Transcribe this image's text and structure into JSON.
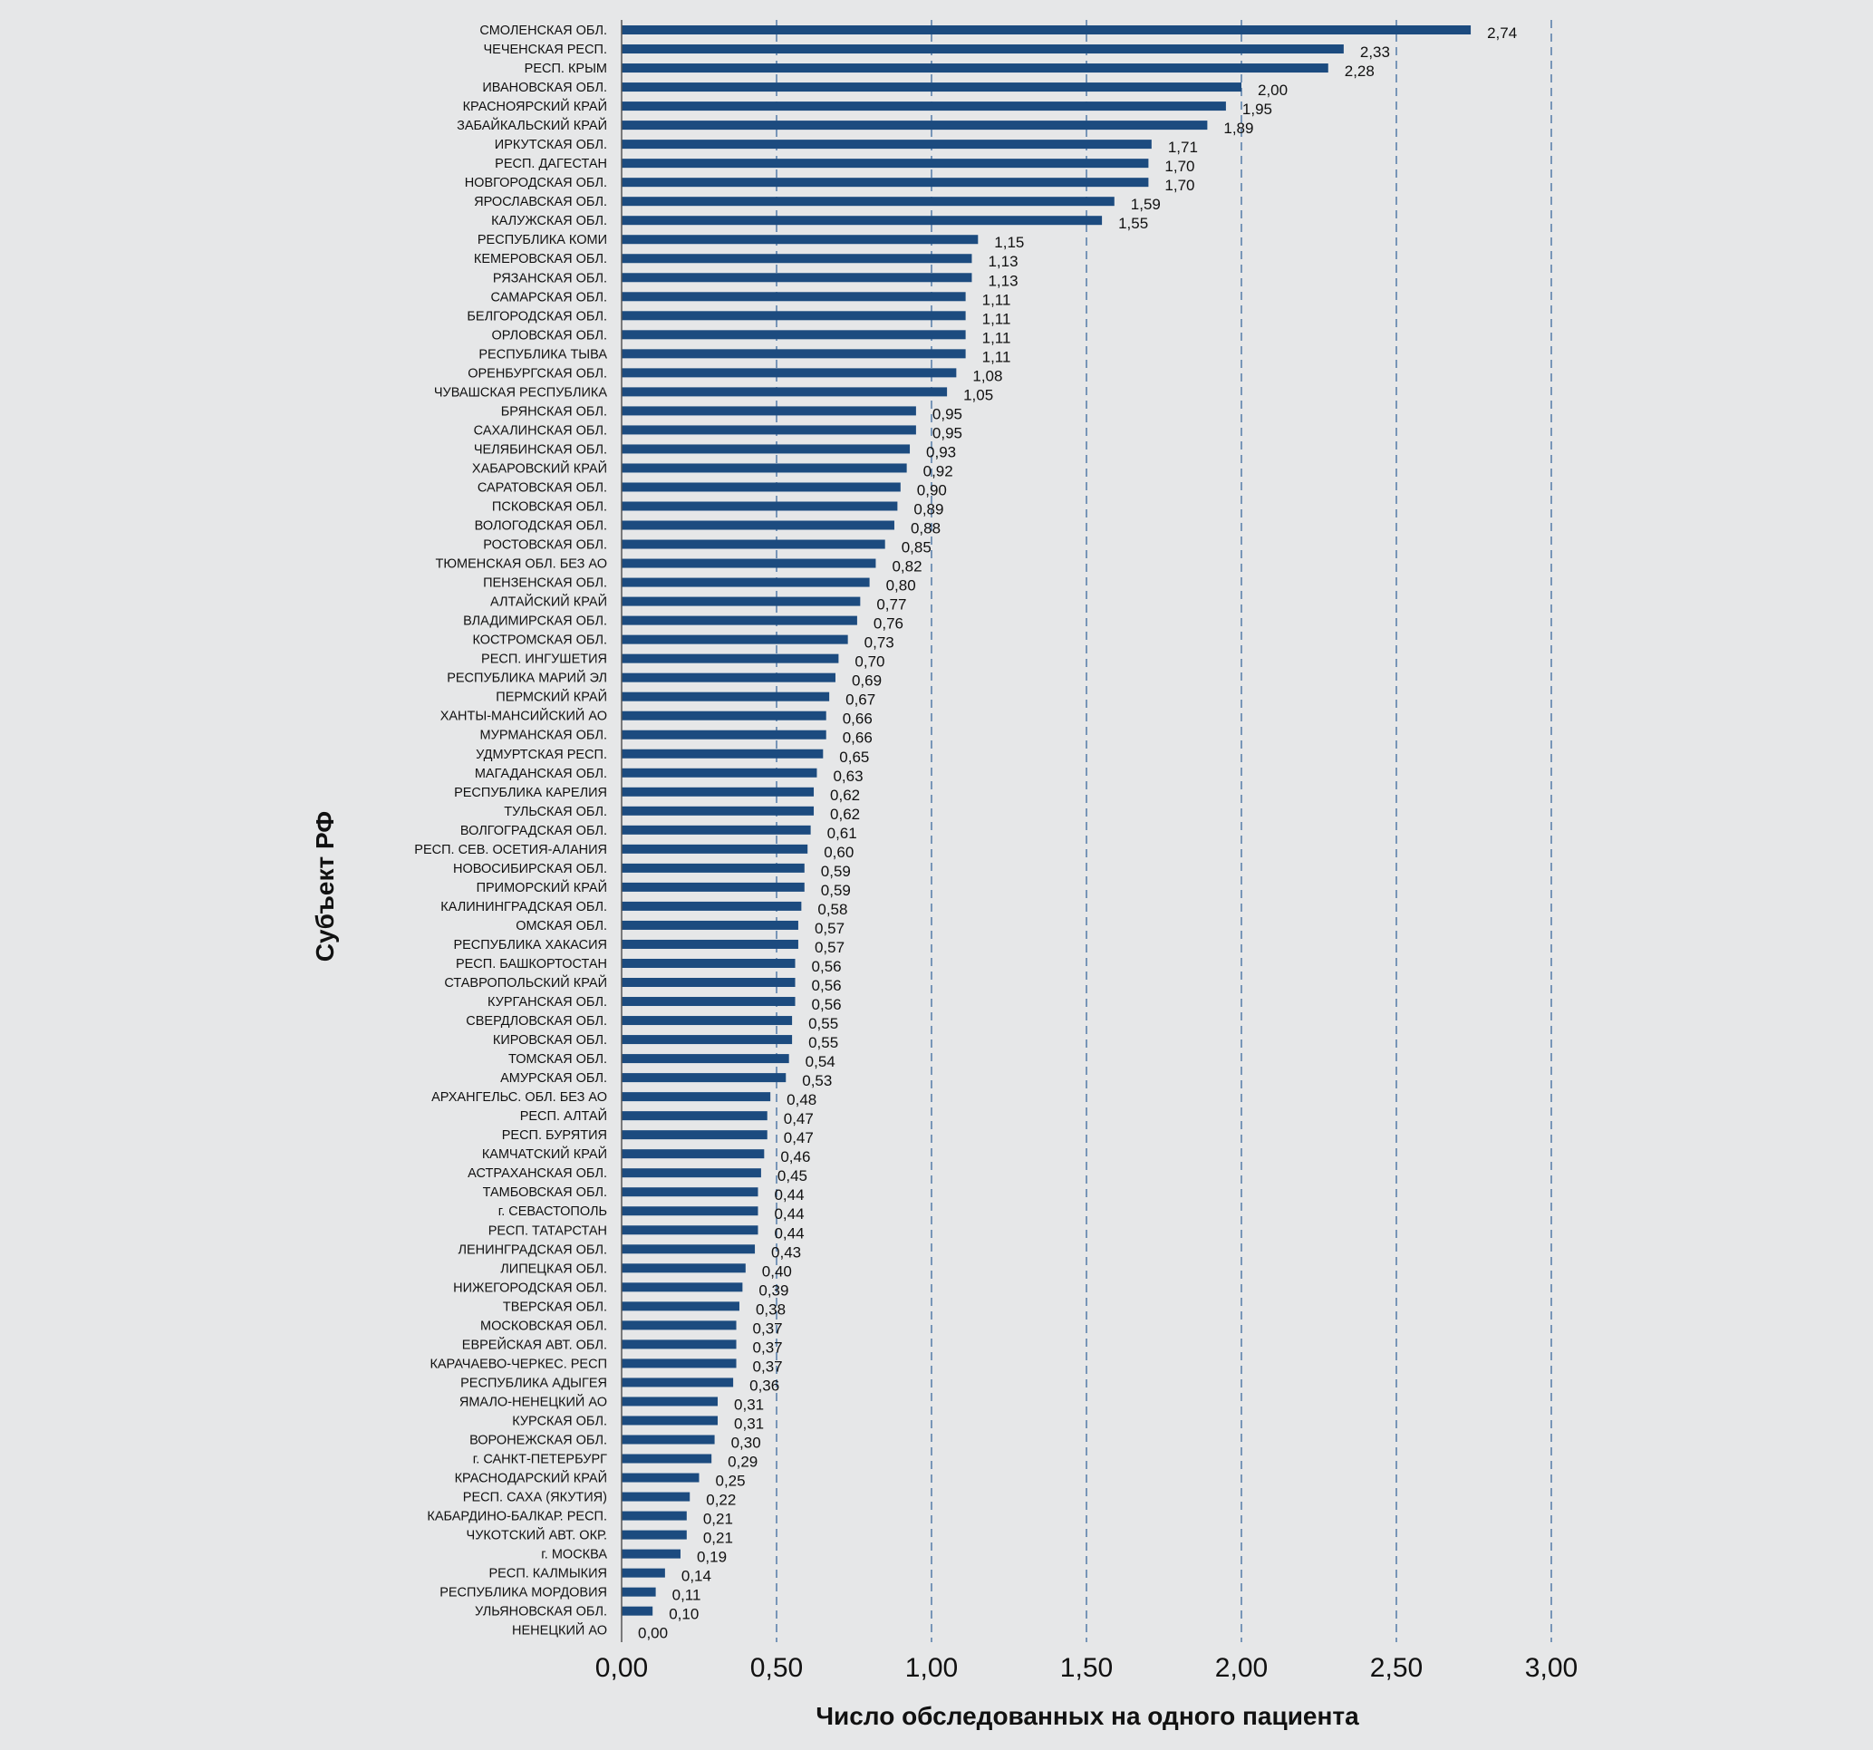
{
  "chart_data": {
    "type": "bar",
    "orientation": "horizontal",
    "title": "",
    "xlabel": "Число обследованных на одного пациента",
    "ylabel": "Субъект РФ",
    "xlim": [
      0,
      3
    ],
    "x_ticks": [
      "0,00",
      "0,50",
      "1,00",
      "1,50",
      "2,00",
      "2,50",
      "3,00"
    ],
    "x_tick_values": [
      0,
      0.5,
      1,
      1.5,
      2,
      2.5,
      3
    ],
    "grid": "vertical dashed",
    "bar_color": "#1c4b7f",
    "grid_color": "#3d6a9e",
    "categories": [
      "СМОЛЕНСКАЯ ОБЛ.",
      "ЧЕЧЕНСКАЯ РЕСП.",
      "РЕСП. КРЫМ",
      "ИВАНОВСКАЯ ОБЛ.",
      "КРАСНОЯРСКИЙ КРАЙ",
      "ЗАБАЙКАЛЬСКИЙ КРАЙ",
      "ИРКУТСКАЯ ОБЛ.",
      "РЕСП. ДАГЕСТАН",
      "НОВГОРОДСКАЯ ОБЛ.",
      "ЯРОСЛАВСКАЯ ОБЛ.",
      "КАЛУЖСКАЯ ОБЛ.",
      "РЕСПУБЛИКА КОМИ",
      "КЕМЕРОВСКАЯ ОБЛ.",
      "РЯЗАНСКАЯ ОБЛ.",
      "САМАРСКАЯ ОБЛ.",
      "БЕЛГОРОДСКАЯ ОБЛ.",
      "ОРЛОВСКАЯ ОБЛ.",
      "РЕСПУБЛИКА ТЫВА",
      "ОРЕНБУРГСКАЯ ОБЛ.",
      "ЧУВАШСКАЯ РЕСПУБЛИКА",
      "БРЯНСКАЯ ОБЛ.",
      "САХАЛИНСКАЯ ОБЛ.",
      "ЧЕЛЯБИНСКАЯ ОБЛ.",
      "ХАБАРОВСКИЙ КРАЙ",
      "САРАТОВСКАЯ ОБЛ.",
      "ПСКОВСКАЯ ОБЛ.",
      "ВОЛОГОДСКАЯ ОБЛ.",
      "РОСТОВСКАЯ ОБЛ.",
      "ТЮМЕНСКАЯ ОБЛ. БЕЗ АО",
      "ПЕНЗЕНСКАЯ ОБЛ.",
      "АЛТАЙСКИЙ КРАЙ",
      "ВЛАДИМИРСКАЯ ОБЛ.",
      "КОСТРОМСКАЯ ОБЛ.",
      "РЕСП. ИНГУШЕТИЯ",
      "РЕСПУБЛИКА МАРИЙ ЭЛ",
      "ПЕРМСКИЙ КРАЙ",
      "ХАНТЫ-МАНСИЙСКИЙ АО",
      "МУРМАНСКАЯ ОБЛ.",
      "УДМУРТСКАЯ РЕСП.",
      "МАГАДАНСКАЯ ОБЛ.",
      "РЕСПУБЛИКА КАРЕЛИЯ",
      "ТУЛЬСКАЯ ОБЛ.",
      "ВОЛГОГРАДСКАЯ ОБЛ.",
      "РЕСП. СЕВ. ОСЕТИЯ-АЛАНИЯ",
      "НОВОСИБИРСКАЯ ОБЛ.",
      "ПРИМОРСКИЙ КРАЙ",
      "КАЛИНИНГРАДСКАЯ ОБЛ.",
      "ОМСКАЯ ОБЛ.",
      "РЕСПУБЛИКА ХАКАСИЯ",
      "РЕСП. БАШКОРТОСТАН",
      "СТАВРОПОЛЬСКИЙ КРАЙ",
      "КУРГАНСКАЯ ОБЛ.",
      "СВЕРДЛОВСКАЯ ОБЛ.",
      "КИРОВСКАЯ ОБЛ.",
      "ТОМСКАЯ ОБЛ.",
      "АМУРСКАЯ ОБЛ.",
      "АРХАНГЕЛЬС. ОБЛ. БЕЗ АО",
      "РЕСП. АЛТАЙ",
      "РЕСП. БУРЯТИЯ",
      "КАМЧАТСКИЙ КРАЙ",
      "АСТРАХАНСКАЯ ОБЛ.",
      "ТАМБОВСКАЯ ОБЛ.",
      "г. СЕВАСТОПОЛЬ",
      "РЕСП. ТАТАРСТАН",
      "ЛЕНИНГРАДСКАЯ ОБЛ.",
      "ЛИПЕЦКАЯ ОБЛ.",
      "НИЖЕГОРОДСКАЯ ОБЛ.",
      "ТВЕРСКАЯ ОБЛ.",
      "МОСКОВСКАЯ ОБЛ.",
      "ЕВРЕЙСКАЯ АВТ. ОБЛ.",
      "КАРАЧАЕВО-ЧЕРКЕС. РЕСП",
      "РЕСПУБЛИКА АДЫГЕЯ",
      "ЯМАЛО-НЕНЕЦКИЙ АО",
      "КУРСКАЯ ОБЛ.",
      "ВОРОНЕЖСКАЯ ОБЛ.",
      "г. САНКТ-ПЕТЕРБУРГ",
      "КРАСНОДАРСКИЙ КРАЙ",
      "РЕСП. САХА (ЯКУТИЯ)",
      "КАБАРДИНО-БАЛКАР. РЕСП.",
      "ЧУКОТСКИЙ АВТ. ОКР.",
      "г. МОСКВА",
      "РЕСП. КАЛМЫКИЯ",
      "РЕСПУБЛИКА МОРДОВИЯ",
      "УЛЬЯНОВСКАЯ ОБЛ.",
      "НЕНЕЦКИЙ АО"
    ],
    "values": [
      2.74,
      2.33,
      2.28,
      2.0,
      1.95,
      1.89,
      1.71,
      1.7,
      1.7,
      1.59,
      1.55,
      1.15,
      1.13,
      1.13,
      1.11,
      1.11,
      1.11,
      1.11,
      1.08,
      1.05,
      0.95,
      0.95,
      0.93,
      0.92,
      0.9,
      0.89,
      0.88,
      0.85,
      0.82,
      0.8,
      0.77,
      0.76,
      0.73,
      0.7,
      0.69,
      0.67,
      0.66,
      0.66,
      0.65,
      0.63,
      0.62,
      0.62,
      0.61,
      0.6,
      0.59,
      0.59,
      0.58,
      0.57,
      0.57,
      0.56,
      0.56,
      0.56,
      0.55,
      0.55,
      0.54,
      0.53,
      0.48,
      0.47,
      0.47,
      0.46,
      0.45,
      0.44,
      0.44,
      0.44,
      0.43,
      0.4,
      0.39,
      0.38,
      0.37,
      0.37,
      0.37,
      0.36,
      0.31,
      0.31,
      0.3,
      0.29,
      0.25,
      0.22,
      0.21,
      0.21,
      0.19,
      0.14,
      0.11,
      0.1,
      0.0
    ],
    "value_labels": [
      "2,74",
      "2,33",
      "2,28",
      "2,00",
      "1,95",
      "1,89",
      "1,71",
      "1,70",
      "1,70",
      "1,59",
      "1,55",
      "1,15",
      "1,13",
      "1,13",
      "1,11",
      "1,11",
      "1,11",
      "1,11",
      "1,08",
      "1,05",
      "0,95",
      "0,95",
      "0,93",
      "0,92",
      "0,90",
      "0,89",
      "0,88",
      "0,85",
      "0,82",
      "0,80",
      "0,77",
      "0,76",
      "0,73",
      "0,70",
      "0,69",
      "0,67",
      "0,66",
      "0,66",
      "0,65",
      "0,63",
      "0,62",
      "0,62",
      "0,61",
      "0,60",
      "0,59",
      "0,59",
      "0,58",
      "0,57",
      "0,57",
      "0,56",
      "0,56",
      "0,56",
      "0,55",
      "0,55",
      "0,54",
      "0,53",
      "0,48",
      "0,47",
      "0,47",
      "0,46",
      "0,45",
      "0,44",
      "0,44",
      "0,44",
      "0,43",
      "0,40",
      "0,39",
      "0,38",
      "0,37",
      "0,37",
      "0,37",
      "0,36",
      "0,31",
      "0,31",
      "0,30",
      "0,29",
      "0,25",
      "0,22",
      "0,21",
      "0,21",
      "0,19",
      "0,14",
      "0,11",
      "0,10",
      "0,00"
    ]
  }
}
